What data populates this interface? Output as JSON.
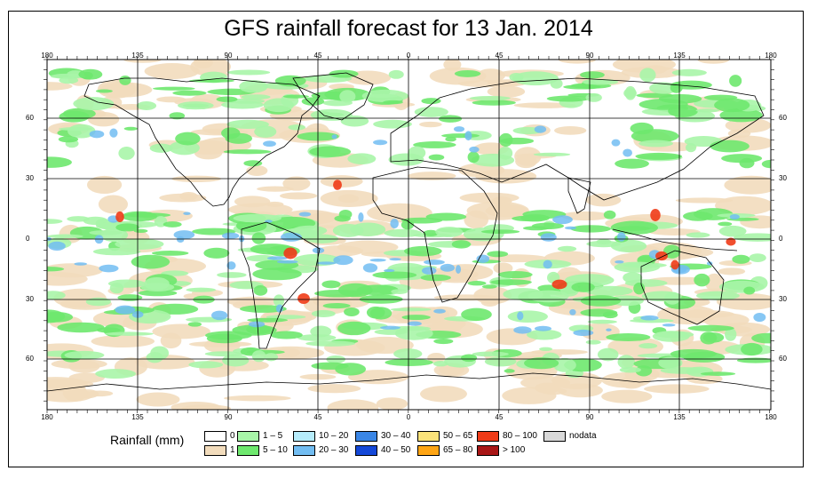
{
  "title": "GFS rainfall forecast for 13 Jan. 2014",
  "lon_ticks": [
    "180",
    "135",
    "90",
    "45",
    "0",
    "45",
    "90",
    "135",
    "180"
  ],
  "lat_ticks": [
    "60",
    "30",
    "0",
    "30",
    "60"
  ],
  "legend": {
    "title": "Rainfall (mm)",
    "items": [
      {
        "label": "0",
        "color": "#ffffff"
      },
      {
        "label": "1",
        "color": "#f2dcbc"
      },
      {
        "label": "1 – 5",
        "color": "#a8f5a8"
      },
      {
        "label": "5 – 10",
        "color": "#6ee86e"
      },
      {
        "label": "10 – 20",
        "color": "#b6ecfb"
      },
      {
        "label": "20 – 30",
        "color": "#72bdf2"
      },
      {
        "label": "30 – 40",
        "color": "#3a86e6"
      },
      {
        "label": "40 – 50",
        "color": "#1448d8"
      },
      {
        "label": "50 – 65",
        "color": "#fbe37a"
      },
      {
        "label": "65 – 80",
        "color": "#ffa514"
      },
      {
        "label": "80 – 100",
        "color": "#ef3b17"
      },
      {
        "label": "> 100",
        "color": "#a81616"
      },
      {
        "label": "nodata",
        "color": "#d9d9d9"
      }
    ]
  },
  "colors": {
    "dry": "#ffffff",
    "trace": "#f2dcbc",
    "light": "#a8f5a8",
    "moderate": "#6ee86e",
    "heavy": "#72bdf2",
    "intense": "#ef3b17",
    "coast": "#000000",
    "grid": "#000000"
  }
}
